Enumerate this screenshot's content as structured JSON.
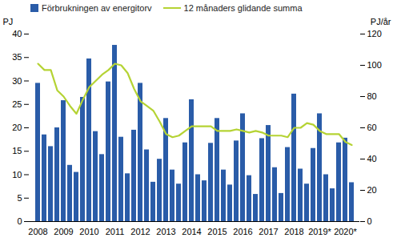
{
  "chart_data": {
    "type": "bar",
    "categories": [
      "2008",
      null,
      null,
      null,
      "2009",
      null,
      null,
      null,
      "2010",
      null,
      null,
      null,
      "2011",
      null,
      null,
      null,
      "2012",
      null,
      null,
      null,
      "2013",
      null,
      null,
      null,
      "2014",
      null,
      null,
      null,
      "2015",
      null,
      null,
      null,
      "2016",
      null,
      null,
      null,
      "2017",
      null,
      null,
      null,
      "2018",
      null,
      null,
      null,
      "2019*",
      null,
      null,
      null,
      "2020*",
      null
    ],
    "series": [
      {
        "name": "Förbrukningen av energitorv",
        "type": "bar",
        "color": "#2a5ca8",
        "values": [
          29.5,
          18.5,
          16,
          20,
          25.8,
          12,
          10.5,
          26.5,
          34.7,
          19.2,
          14.3,
          29.8,
          37.6,
          18,
          10.2,
          19.5,
          29.5,
          15.3,
          8.4,
          13.3,
          22,
          11,
          8,
          16.8,
          26,
          10,
          8.7,
          16.7,
          22,
          11,
          7.8,
          17.2,
          23,
          9.8,
          5.8,
          17.7,
          20.5,
          11.5,
          6,
          15.8,
          27.2,
          11.2,
          8,
          15.6,
          23,
          10,
          7,
          16.8,
          17.8,
          8.3
        ]
      },
      {
        "name": "12 månaders glidande summa",
        "type": "line",
        "axis": "y2",
        "color": "#b5d334",
        "values": [
          101,
          97,
          97,
          84,
          80,
          74,
          69,
          78,
          86,
          90,
          94,
          97,
          101,
          100,
          95,
          85,
          77,
          74,
          71,
          64,
          56,
          54,
          55,
          58,
          61,
          61,
          61,
          61,
          58,
          58,
          58,
          59,
          58,
          57,
          58,
          57,
          55,
          55,
          55,
          54,
          60,
          60,
          63,
          62,
          58,
          56,
          56,
          56,
          51,
          49
        ]
      }
    ],
    "ylabel": "PJ",
    "y2label": "PJ/år",
    "ylim": [
      0,
      40
    ],
    "yticks": [
      0,
      5,
      10,
      15,
      20,
      25,
      30,
      35,
      40
    ],
    "y2lim": [
      0,
      120
    ],
    "y2ticks": [
      0,
      20,
      40,
      60,
      80,
      100,
      120
    ],
    "legend": "top",
    "grid": false
  }
}
